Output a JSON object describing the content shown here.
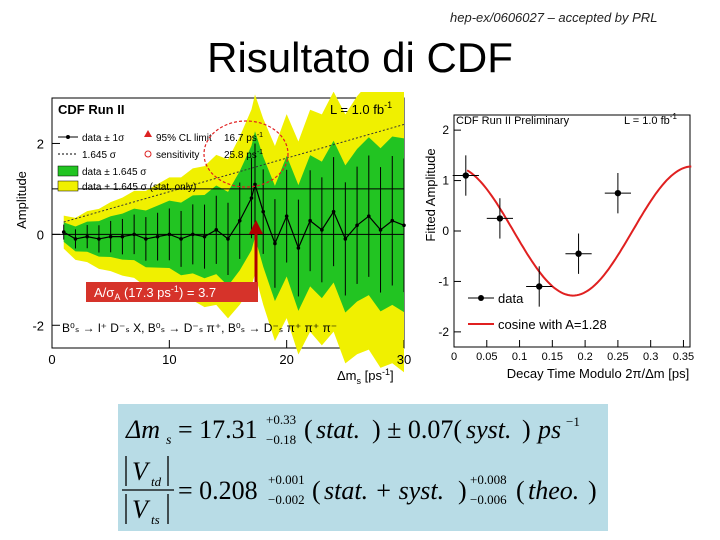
{
  "header_note": "hep-ex/0606027 – accepted by PRL",
  "title": "Risultato di CDF",
  "left_plot": {
    "header": "CDF Run II",
    "lumi": {
      "text": "L = 1.0 fb",
      "sup": "-1"
    },
    "ylabel": "Amplitude",
    "xlabel": {
      "main": "Δm",
      "sub": "s",
      "unit": " [ps",
      "sup": "-1",
      "end": "]"
    },
    "legend": {
      "data": "data ± 1σ",
      "sigma": "1.645 σ",
      "band1": "data ± 1.645 σ",
      "band2": "data + 1.645 σ (stat. only)",
      "cl": "95% CL limit",
      "sens": "sensitivity",
      "cl_val": {
        "text": "16.7 ps",
        "sup": "-1"
      },
      "sens_val": {
        "text": "25.8 ps",
        "sup": "-1"
      }
    },
    "annotation": {
      "a": "A/σ",
      "sub": "A",
      "b": " (17.3 ps",
      "sup": "-1",
      "c": ") = 3.7"
    },
    "decay": "B⁰ₛ → l⁺ D⁻ₛ X, B⁰ₛ → D⁻ₛ π⁺, B⁰ₛ → D⁻ₛ π⁺ π⁺ π⁻",
    "xticks": [
      "0",
      "10",
      "20",
      "30"
    ],
    "yticks": [
      "2",
      "0",
      "-2"
    ],
    "colors": {
      "band_outer": "#f0f000",
      "band_inner": "#22c422",
      "data": "#000000",
      "annotation_bg": "#d6332a",
      "arrow": "#b00000"
    }
  },
  "right_plot": {
    "header": "CDF Run II Preliminary",
    "lumi": {
      "text": "L = 1.0 fb",
      "sup": "-1"
    },
    "ylabel": "Fitted Amplitude",
    "xlabel": "Decay Time Modulo 2π/Δm  [ps]",
    "xlabel_sub": "s",
    "legend": {
      "data": "data",
      "cosine": "cosine with A=1.28"
    },
    "xticks": [
      "0",
      "0.05",
      "0.1",
      "0.15",
      "0.2",
      "0.25",
      "0.3",
      "0.35"
    ],
    "yticks": [
      "2",
      "1",
      "0",
      "-1",
      "-2"
    ],
    "curve_color": "#e02020"
  },
  "chart_data": [
    {
      "type": "line",
      "title": "CDF Run II",
      "xlabel": "Δms [ps-1]",
      "ylabel": "Amplitude",
      "xlim": [
        0,
        30
      ],
      "ylim": [
        -2.5,
        3
      ],
      "x": [
        1,
        2,
        3,
        4,
        5,
        6,
        7,
        8,
        9,
        10,
        11,
        12,
        13,
        14,
        15,
        16,
        17,
        17.3,
        18,
        19,
        20,
        21,
        22,
        23,
        24,
        25,
        26,
        27,
        28,
        29,
        30
      ],
      "series": [
        {
          "name": "data ± 1σ",
          "values": [
            0.05,
            -0.1,
            -0.05,
            -0.1,
            -0.05,
            -0.05,
            0.0,
            -0.1,
            -0.05,
            0.0,
            -0.1,
            0.0,
            -0.05,
            0.1,
            -0.1,
            0.3,
            0.8,
            1.1,
            0.5,
            -0.2,
            0.4,
            -0.3,
            0.3,
            0.1,
            0.5,
            -0.1,
            0.2,
            0.4,
            0.1,
            0.3,
            0.2
          ]
        }
      ],
      "annotation": "A/σA (17.3 ps-1) = 3.7"
    },
    {
      "type": "scatter",
      "title": "CDF Run II Preliminary",
      "xlabel": "Decay Time Modulo 2π/Δms [ps]",
      "ylabel": "Fitted Amplitude",
      "xlim": [
        0,
        0.36
      ],
      "ylim": [
        -2.3,
        2.3
      ],
      "series": [
        {
          "name": "data",
          "x": [
            0.018,
            0.07,
            0.13,
            0.19,
            0.25
          ],
          "y": [
            1.1,
            0.25,
            -1.1,
            -0.45,
            0.75
          ]
        },
        {
          "name": "cosine with A=1.28"
        }
      ]
    }
  ]
}
